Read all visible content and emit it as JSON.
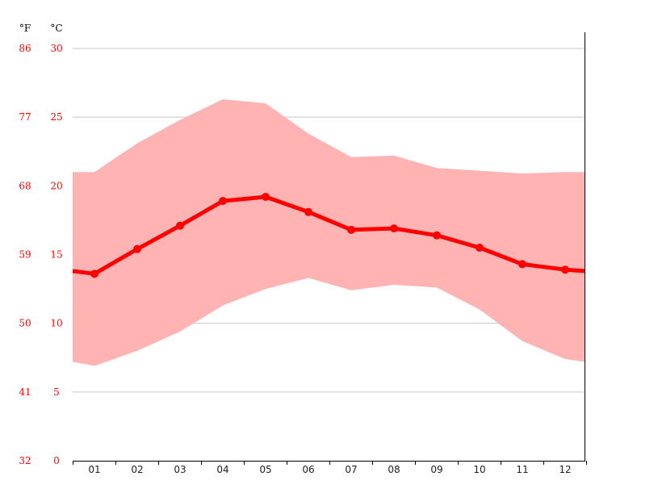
{
  "chart_data": {
    "type": "line",
    "categories": [
      "01",
      "02",
      "03",
      "04",
      "05",
      "06",
      "07",
      "08",
      "09",
      "10",
      "11",
      "12"
    ],
    "series": [
      {
        "values": [
          13.6,
          15.4,
          17.1,
          18.9,
          19.2,
          18.1,
          16.8,
          16.9,
          16.4,
          15.5,
          14.3,
          13.9
        ]
      }
    ],
    "band": {
      "upper": [
        21.0,
        23.1,
        24.8,
        26.3,
        26.0,
        23.8,
        22.1,
        22.2,
        21.3,
        21.1,
        20.9,
        21.0
      ],
      "lower": [
        6.9,
        8.0,
        9.4,
        11.3,
        12.5,
        13.3,
        12.4,
        12.8,
        12.6,
        11.0,
        8.7,
        7.4
      ]
    },
    "edge_values": {
      "line": [
        13.8,
        13.8
      ],
      "upper": [
        21.0,
        21.0
      ],
      "lower": [
        7.2,
        7.2
      ]
    },
    "ylim": [
      0,
      30
    ],
    "yticks_c": [
      "0",
      "5",
      "10",
      "15",
      "20",
      "25",
      "30"
    ],
    "yticks_f": [
      "32",
      "41",
      "50",
      "59",
      "68",
      "77",
      "86"
    ],
    "y_unit_f": "°F",
    "y_unit_c": "°C",
    "grid": true,
    "colors": {
      "line": "#ff0000",
      "band": "#ffb3b3",
      "text": "#ff0000",
      "grid": "#c8c8c8",
      "axis": "#000000"
    }
  }
}
